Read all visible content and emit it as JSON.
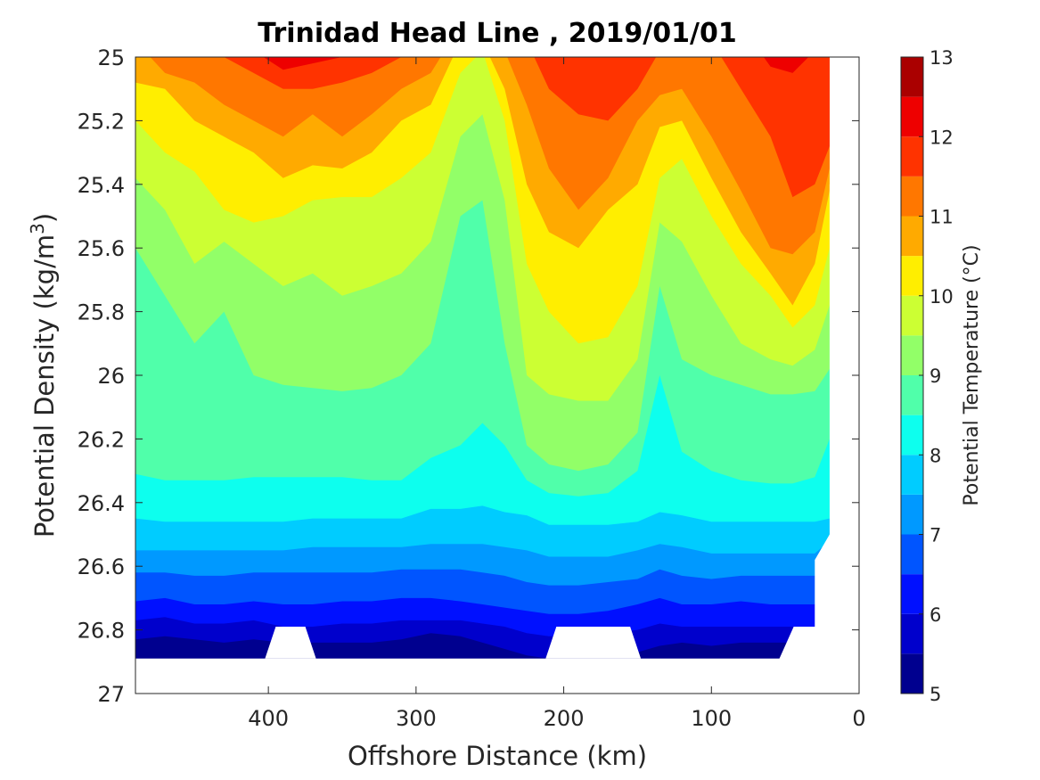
{
  "chart_data": {
    "type": "heatmap",
    "subtype": "filled-contour",
    "title": "Trinidad Head Line , 2019/01/01",
    "xlabel": "Offshore Distance (km)",
    "ylabel": "Potential Density (kg/m",
    "ylabel_superscript": "3",
    "ylabel_close": ")",
    "xlim": [
      490,
      0
    ],
    "x_reversed": true,
    "ylim": [
      25,
      27
    ],
    "y_reversed": true,
    "x_ticks": [
      400,
      300,
      200,
      100,
      0
    ],
    "x_tick_labels": [
      "400",
      "300",
      "200",
      "100",
      "0"
    ],
    "y_ticks": [
      25,
      25.2,
      25.4,
      25.6,
      25.8,
      26,
      26.2,
      26.4,
      26.6,
      26.8,
      27
    ],
    "y_tick_labels": [
      "25",
      "25.2",
      "25.4",
      "25.6",
      "25.8",
      "26",
      "26.2",
      "26.4",
      "26.6",
      "26.8",
      "27"
    ],
    "grid": false,
    "colorbar": {
      "label": "Potential Temperature (°C)",
      "levels": [
        5,
        5.5,
        6,
        6.5,
        7,
        7.5,
        8,
        8.5,
        9,
        9.5,
        10,
        10.5,
        11,
        11.5,
        12,
        12.5,
        13
      ],
      "tick_values": [
        5,
        6,
        7,
        8,
        9,
        10,
        11,
        12,
        13
      ],
      "tick_labels": [
        "5",
        "6",
        "7",
        "8",
        "9",
        "10",
        "11",
        "12",
        "13"
      ],
      "colors": [
        "#00008f",
        "#0000cc",
        "#0010ff",
        "#0055ff",
        "#0099ff",
        "#00ccff",
        "#0dffee",
        "#50ffaa",
        "#92ff68",
        "#ccff33",
        "#ffee00",
        "#ffaa00",
        "#ff7700",
        "#ff3300",
        "#ee0000",
        "#aa0000"
      ]
    },
    "x": [
      490,
      470,
      450,
      430,
      410,
      390,
      370,
      350,
      330,
      310,
      290,
      270,
      255,
      240,
      225,
      210,
      190,
      170,
      150,
      135,
      120,
      100,
      80,
      60,
      45,
      30,
      20
    ],
    "isolines": [
      {
        "level": 5.5,
        "density": [
          26.83,
          26.82,
          26.83,
          26.84,
          26.83,
          26.84,
          26.84,
          26.84,
          26.84,
          26.83,
          26.81,
          26.82,
          26.84,
          26.86,
          26.88,
          26.89,
          26.88,
          26.87,
          26.87,
          26.85,
          26.84,
          26.85,
          26.84,
          26.84,
          26.84,
          26.84,
          26.84
        ]
      },
      {
        "level": 6.0,
        "density": [
          26.77,
          26.76,
          26.78,
          26.78,
          26.77,
          26.79,
          26.79,
          26.78,
          26.78,
          26.77,
          26.77,
          26.77,
          26.78,
          26.79,
          26.81,
          26.82,
          26.82,
          26.81,
          26.8,
          26.78,
          26.79,
          26.79,
          26.79,
          26.79,
          26.79,
          26.79,
          26.79
        ]
      },
      {
        "level": 6.5,
        "density": [
          26.71,
          26.7,
          26.72,
          26.72,
          26.71,
          26.72,
          26.72,
          26.71,
          26.71,
          26.7,
          26.7,
          26.71,
          26.72,
          26.73,
          26.74,
          26.75,
          26.75,
          26.74,
          26.72,
          26.7,
          26.72,
          26.72,
          26.71,
          26.72,
          26.72,
          26.72,
          26.6
        ]
      },
      {
        "level": 7.0,
        "density": [
          26.62,
          26.62,
          26.63,
          26.63,
          26.62,
          26.62,
          26.62,
          26.62,
          26.62,
          26.61,
          26.61,
          26.61,
          26.62,
          26.63,
          26.65,
          26.66,
          26.66,
          26.65,
          26.64,
          26.61,
          26.63,
          26.64,
          26.63,
          26.63,
          26.63,
          26.63,
          26.57
        ]
      },
      {
        "level": 7.5,
        "density": [
          26.55,
          26.55,
          26.55,
          26.55,
          26.55,
          26.55,
          26.54,
          26.54,
          26.54,
          26.54,
          26.53,
          26.53,
          26.53,
          26.54,
          26.55,
          26.57,
          26.57,
          26.57,
          26.55,
          26.53,
          26.54,
          26.56,
          26.56,
          26.56,
          26.56,
          26.56,
          26.52
        ]
      },
      {
        "level": 8.0,
        "density": [
          26.45,
          26.46,
          26.46,
          26.46,
          26.46,
          26.46,
          26.45,
          26.45,
          26.45,
          26.45,
          26.42,
          26.42,
          26.41,
          26.43,
          26.44,
          26.47,
          26.47,
          26.47,
          26.46,
          26.43,
          26.44,
          26.46,
          26.46,
          26.46,
          26.46,
          26.46,
          26.45
        ]
      },
      {
        "level": 8.5,
        "density": [
          26.31,
          26.33,
          26.33,
          26.33,
          26.32,
          26.32,
          26.32,
          26.32,
          26.33,
          26.33,
          26.26,
          26.22,
          26.15,
          26.22,
          26.33,
          26.37,
          26.38,
          26.37,
          26.3,
          26.0,
          26.24,
          26.3,
          26.33,
          26.34,
          26.34,
          26.32,
          26.2
        ]
      },
      {
        "level": 9.0,
        "density": [
          25.6,
          25.75,
          25.9,
          25.8,
          26.0,
          26.03,
          26.04,
          26.05,
          26.04,
          26.0,
          25.9,
          25.5,
          25.45,
          25.9,
          26.22,
          26.28,
          26.3,
          26.28,
          26.18,
          25.72,
          25.95,
          26.0,
          26.03,
          26.06,
          26.06,
          26.05,
          25.98
        ]
      },
      {
        "level": 9.5,
        "density": [
          25.38,
          25.48,
          25.65,
          25.58,
          25.65,
          25.72,
          25.68,
          25.75,
          25.72,
          25.68,
          25.58,
          25.25,
          25.18,
          25.45,
          26.0,
          26.06,
          26.08,
          26.08,
          25.95,
          25.52,
          25.58,
          25.75,
          25.9,
          25.95,
          25.97,
          25.92,
          25.78
        ]
      },
      {
        "level": 10.0,
        "density": [
          25.2,
          25.3,
          25.36,
          25.48,
          25.52,
          25.5,
          25.45,
          25.44,
          25.44,
          25.38,
          25.3,
          25.05,
          24.98,
          25.2,
          25.65,
          25.8,
          25.9,
          25.88,
          25.72,
          25.38,
          25.32,
          25.5,
          25.65,
          25.75,
          25.85,
          25.78,
          25.6
        ]
      },
      {
        "level": 10.5,
        "density": [
          25.08,
          25.1,
          25.2,
          25.25,
          25.3,
          25.38,
          25.34,
          25.35,
          25.3,
          25.2,
          25.15,
          24.95,
          24.95,
          25.1,
          25.4,
          25.55,
          25.6,
          25.48,
          25.4,
          25.22,
          25.2,
          25.38,
          25.55,
          25.68,
          25.78,
          25.65,
          25.42
        ]
      },
      {
        "level": 11.0,
        "density": [
          24.95,
          25.05,
          25.08,
          25.15,
          25.2,
          25.25,
          25.18,
          25.25,
          25.18,
          25.1,
          25.05,
          24.9,
          24.9,
          24.98,
          25.15,
          25.35,
          25.48,
          25.38,
          25.2,
          25.12,
          25.1,
          25.25,
          25.42,
          25.6,
          25.62,
          25.55,
          25.35
        ]
      },
      {
        "level": 11.5,
        "density": [
          24.9,
          24.9,
          24.95,
          25.0,
          25.05,
          25.1,
          25.1,
          25.08,
          25.05,
          25.0,
          24.95,
          24.88,
          24.88,
          24.9,
          24.95,
          25.1,
          25.18,
          25.2,
          25.1,
          24.98,
          24.95,
          24.95,
          25.1,
          25.25,
          25.44,
          25.4,
          25.28
        ]
      },
      {
        "level": 12.0,
        "density": [
          24.85,
          24.85,
          24.9,
          24.95,
          24.98,
          25.04,
          25.02,
          25.0,
          24.98,
          24.98,
          24.9,
          24.85,
          24.85,
          24.85,
          24.88,
          24.9,
          24.92,
          24.92,
          24.9,
          24.88,
          24.88,
          24.88,
          24.9,
          25.03,
          25.05,
          24.98,
          24.9
        ]
      }
    ],
    "data_gaps": [
      {
        "x_range": [
          395,
          375
        ],
        "below_density": 26.79
      },
      {
        "x_range": [
          205,
          155
        ],
        "below_density": 26.79
      },
      {
        "x_range": [
          60,
          20
        ],
        "below_density": 26.79
      },
      {
        "x_range": [
          20,
          0
        ],
        "below_density": 25.4
      }
    ]
  }
}
